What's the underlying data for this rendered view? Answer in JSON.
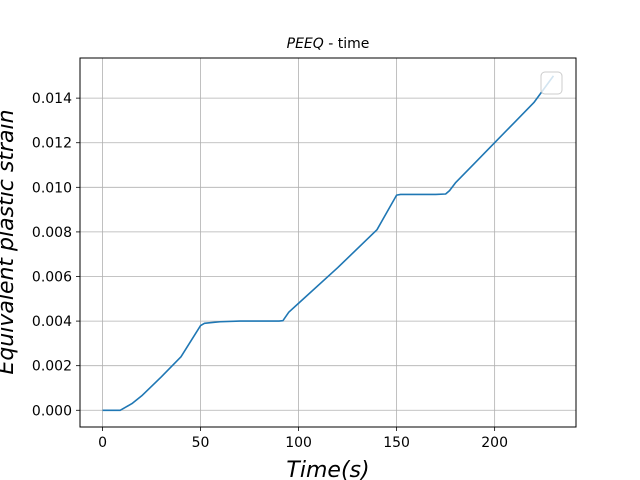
{
  "chart_data": {
    "type": "line",
    "title_var": "PEEQ",
    "title_rest": " - time",
    "xlabel": "Time(s)",
    "ylabel": "Equivalent plastic strain",
    "xlim": [
      -11.5,
      241.5
    ],
    "ylim": [
      -0.00075,
      0.0158
    ],
    "x_ticks": [
      0,
      50,
      100,
      150,
      200
    ],
    "x_tick_labels": [
      "0",
      "50",
      "100",
      "150",
      "200"
    ],
    "y_ticks": [
      0,
      0.002,
      0.004,
      0.006,
      0.008,
      0.01,
      0.012,
      0.014
    ],
    "y_tick_labels": [
      "0.000",
      "0.002",
      "0.004",
      "0.006",
      "0.008",
      "0.010",
      "0.012",
      "0.014"
    ],
    "grid": true,
    "legend": "top-right, empty",
    "series": [
      {
        "color": "#1f77b4",
        "x": [
          0,
          9,
          10,
          12,
          15,
          20,
          30,
          40,
          50,
          52,
          55,
          60,
          70,
          80,
          90,
          92,
          95,
          100,
          120,
          140,
          150,
          152,
          160,
          170,
          175,
          177,
          180,
          190,
          200,
          210,
          220,
          230
        ],
        "y": [
          0,
          0,
          5e-05,
          0.00015,
          0.0003,
          0.00065,
          0.0015,
          0.0024,
          0.0038,
          0.0039,
          0.00393,
          0.00397,
          0.004,
          0.004,
          0.004,
          0.00402,
          0.0044,
          0.0048,
          0.0064,
          0.0081,
          0.00965,
          0.00968,
          0.00968,
          0.00968,
          0.0097,
          0.00985,
          0.0102,
          0.0111,
          0.012,
          0.0129,
          0.0138,
          0.015
        ]
      }
    ]
  }
}
